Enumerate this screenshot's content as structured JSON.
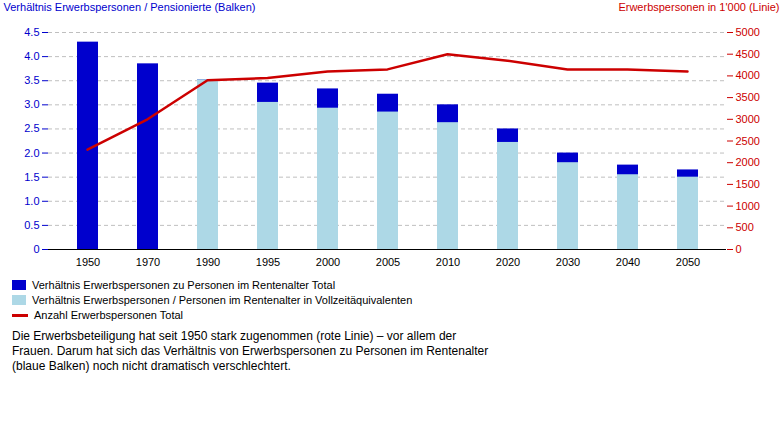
{
  "chart_data": {
    "type": "bar",
    "categories": [
      "1950",
      "1970",
      "1990",
      "1995",
      "2000",
      "2005",
      "2010",
      "2020",
      "2030",
      "2040",
      "2050"
    ],
    "series": [
      {
        "name": "Verhältnis Erwerbspersonen zu Personen im Rentenalter Total",
        "type": "bar",
        "color": "#0000CD",
        "values": [
          4.3,
          3.85,
          3.52,
          3.45,
          3.33,
          3.22,
          3.0,
          2.5,
          2.0,
          1.75,
          1.65
        ]
      },
      {
        "name": "Verhältnis Erwerbspersonen / Personen im Rentenalter in Vollzeitäquivalenten",
        "type": "bar",
        "color": "#ADD8E6",
        "values": [
          null,
          null,
          3.52,
          3.05,
          2.93,
          2.85,
          2.63,
          2.22,
          1.8,
          1.55,
          1.5
        ]
      },
      {
        "name": "Anzahl Erwerbspersonen Total",
        "type": "line",
        "axis": "y2",
        "color": "#CC0000",
        "values": [
          2300,
          3000,
          3900,
          3950,
          4100,
          4150,
          4500,
          4350,
          4150,
          4150,
          4100
        ]
      }
    ],
    "ylabel": "Verhältnis Erwerbspersonen / Pensionierte (Balken)",
    "y2label": "Erwerbspersonen in 1'000 (Linie)",
    "ylim": [
      0,
      4.5
    ],
    "yticks": [
      0,
      0.5,
      {
        "value": 1,
        "label": "1.0"
      },
      1.5,
      {
        "value": 2,
        "label": "2.0"
      },
      2.5,
      {
        "value": 3,
        "label": "3.0"
      },
      3.5,
      {
        "value": 4,
        "label": "4.0"
      },
      4.5
    ],
    "y2lim": [
      0,
      5000
    ],
    "y2ticks": [
      0,
      500,
      1000,
      1500,
      2000,
      2500,
      3000,
      3500,
      4000,
      4500,
      5000
    ],
    "grid": true,
    "legend": "lower left",
    "caption": "Die Erwerbsbeteiligung hat seit 1950 stark zugenommen (rote Linie) – vor allem der\nFrauen. Darum hat sich das Verhältnis von Erwerbspersonen zu Personen im Rentenalter\n(blaue Balken) noch nicht dramatisch verschlechtert."
  }
}
